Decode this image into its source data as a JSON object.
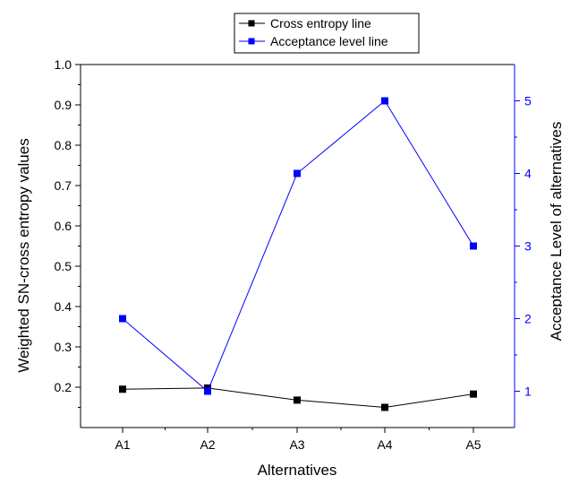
{
  "chart_data": {
    "type": "line",
    "xlabel": "Alternatives",
    "ylabel": "Weighted SN-cross entropy values",
    "ylabel_right": "Acceptance Level of alternatives",
    "categories": [
      "A1",
      "A2",
      "A3",
      "A4",
      "A5"
    ],
    "ylim": [
      0.1,
      1.0
    ],
    "ylim_right": [
      0.5,
      5.5
    ],
    "yticks": [
      "0.2",
      "0.3",
      "0.4",
      "0.5",
      "0.6",
      "0.7",
      "0.8",
      "0.9",
      "1.0"
    ],
    "yticks_right": [
      "1",
      "2",
      "3",
      "4",
      "5"
    ],
    "legend_position": "top-center",
    "series": [
      {
        "name": "Cross entropy line",
        "axis": "left",
        "color": "#000000",
        "values": [
          0.195,
          0.198,
          0.168,
          0.15,
          0.183
        ]
      },
      {
        "name": "Acceptance level line",
        "axis": "right",
        "color": "#0000ff",
        "values": [
          2,
          1,
          4,
          5,
          3
        ]
      }
    ]
  }
}
